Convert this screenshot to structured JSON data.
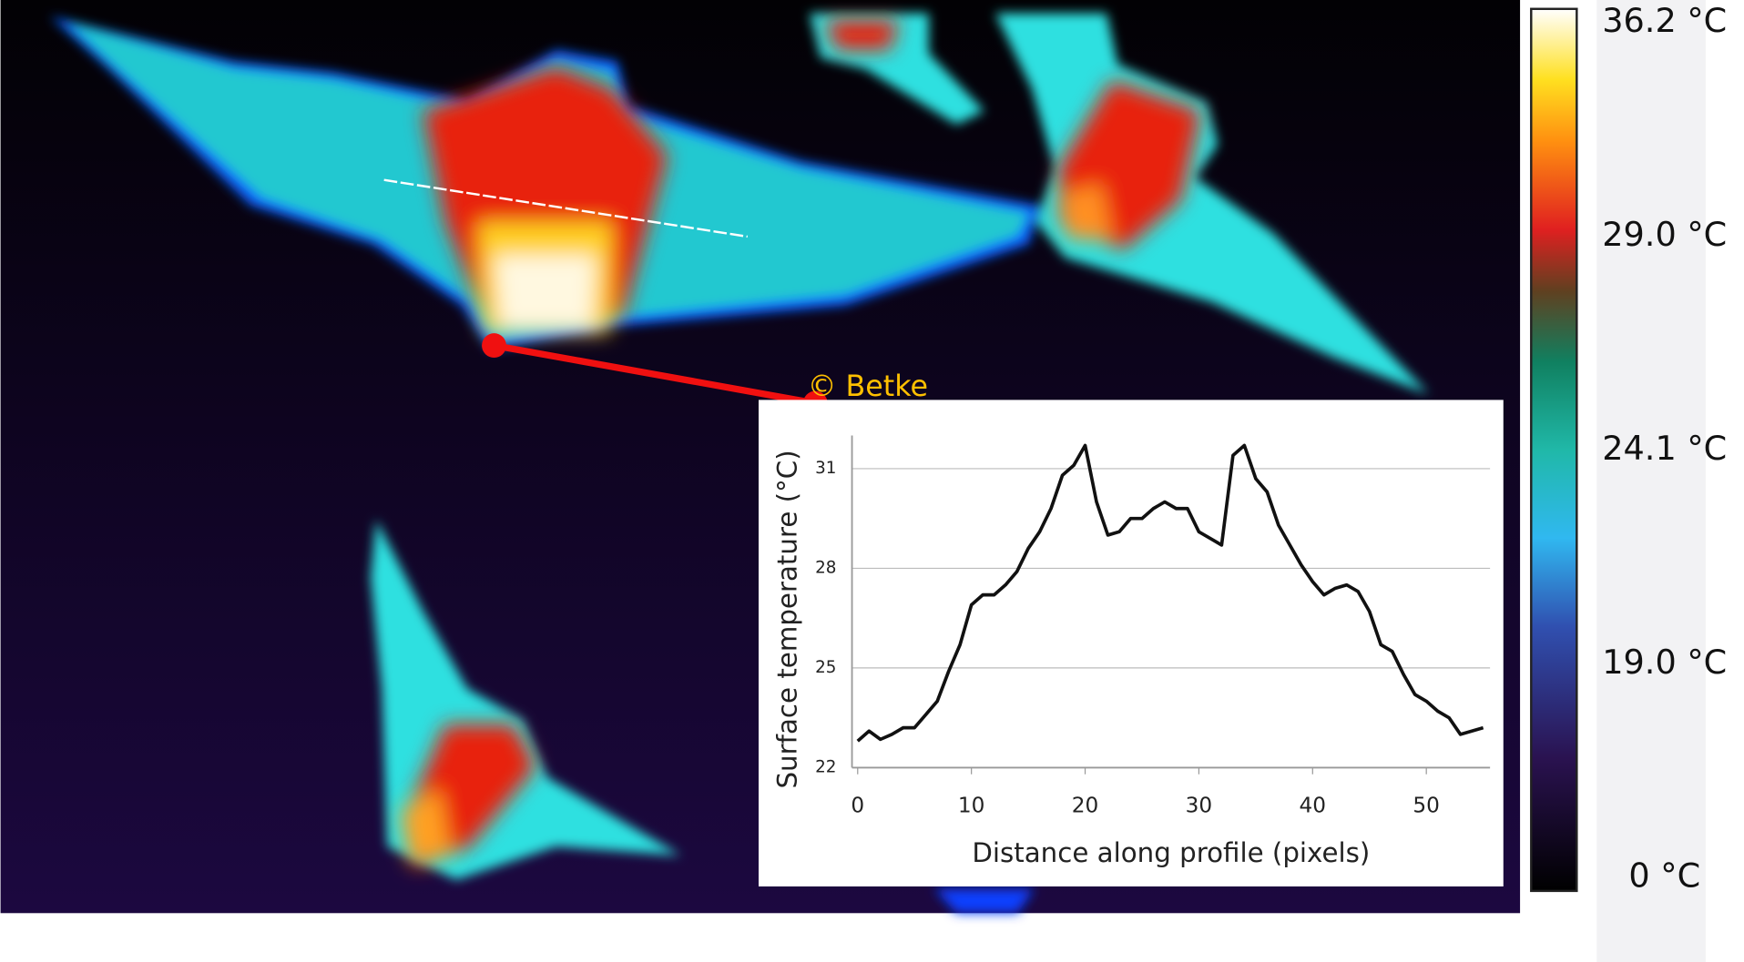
{
  "chart_data": {
    "type": "line",
    "x_label": "Distance along profile (pixels)",
    "y_label": "Surface temperature (°C)",
    "x": [
      0,
      1,
      2,
      3,
      4,
      5,
      6,
      7,
      8,
      9,
      10,
      11,
      12,
      13,
      14,
      15,
      16,
      17,
      18,
      19,
      20,
      21,
      22,
      23,
      24,
      25,
      26,
      27,
      28,
      29,
      30,
      31,
      32,
      33,
      34,
      35,
      36,
      37,
      38,
      39,
      40,
      41,
      42,
      43,
      44,
      45,
      46,
      47,
      48,
      49,
      50,
      51,
      52,
      53,
      54,
      55
    ],
    "series": [
      {
        "color": "#111111",
        "values": [
          22.8,
          23.1,
          22.85,
          23.0,
          23.2,
          23.2,
          23.6,
          24.0,
          24.9,
          25.7,
          26.9,
          27.2,
          27.2,
          27.5,
          27.9,
          28.6,
          29.1,
          29.8,
          30.8,
          31.1,
          31.7,
          30.0,
          29.0,
          29.1,
          29.5,
          29.5,
          29.8,
          30.0,
          29.8,
          29.8,
          29.1,
          28.9,
          28.7,
          31.4,
          31.7,
          30.7,
          30.3,
          29.3,
          28.7,
          28.1,
          27.6,
          27.2,
          27.4,
          27.5,
          27.3,
          26.7,
          25.7,
          25.5,
          24.8,
          24.2,
          24.0,
          23.7,
          23.5,
          23.0,
          23.1,
          23.2
        ]
      }
    ],
    "xlim": [
      -0.5,
      55.6
    ],
    "ylim": [
      22,
      32
    ],
    "xticks": [
      0,
      10,
      20,
      30,
      40,
      50
    ],
    "yticks": [
      22,
      25,
      28,
      31
    ],
    "grid": true
  },
  "colorbar": {
    "labels": [
      "36.2 °C",
      "29.0 °C",
      "24.1 °C",
      "19.0 °C",
      "0 °C"
    ]
  },
  "credit": "© Betke"
}
